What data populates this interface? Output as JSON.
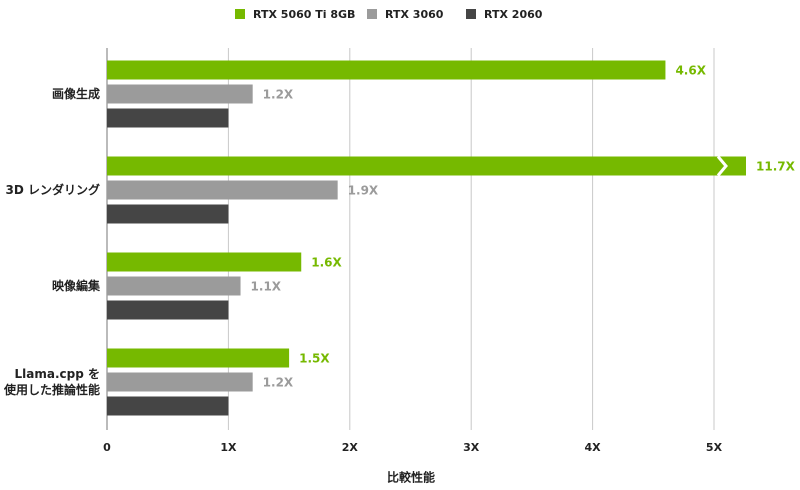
{
  "chart_data": {
    "type": "barh",
    "categories": [
      "画像生成",
      "3D レンダリング",
      "映像編集",
      "Llama.cpp を\n使用した推論性能"
    ],
    "series": [
      {
        "name": "RTX 5060 Ti 8GB",
        "color": "#76b900",
        "values": [
          4.6,
          11.7,
          1.6,
          1.5
        ],
        "value_labels": [
          "4.6X",
          "11.7X",
          "1.6X",
          "1.5X"
        ]
      },
      {
        "name": "RTX 3060",
        "color": "#9b9b9b",
        "values": [
          1.2,
          1.9,
          1.1,
          1.2
        ],
        "value_labels": [
          "1.2X",
          "1.9X",
          "1.1X",
          "1.2X"
        ]
      },
      {
        "name": "RTX 2060",
        "color": "#454545",
        "values": [
          1,
          1,
          1,
          1
        ]
      }
    ],
    "xlim": [
      0,
      5
    ],
    "xticks": [
      0,
      {
        "value": 1,
        "label": "1X"
      },
      {
        "value": 2,
        "label": "2X"
      },
      {
        "value": 3,
        "label": "3X"
      },
      {
        "value": 4,
        "label": "4X"
      },
      {
        "value": 5,
        "label": "5X"
      }
    ],
    "xlabel": "比較性能",
    "grid": true,
    "legend": "top"
  }
}
